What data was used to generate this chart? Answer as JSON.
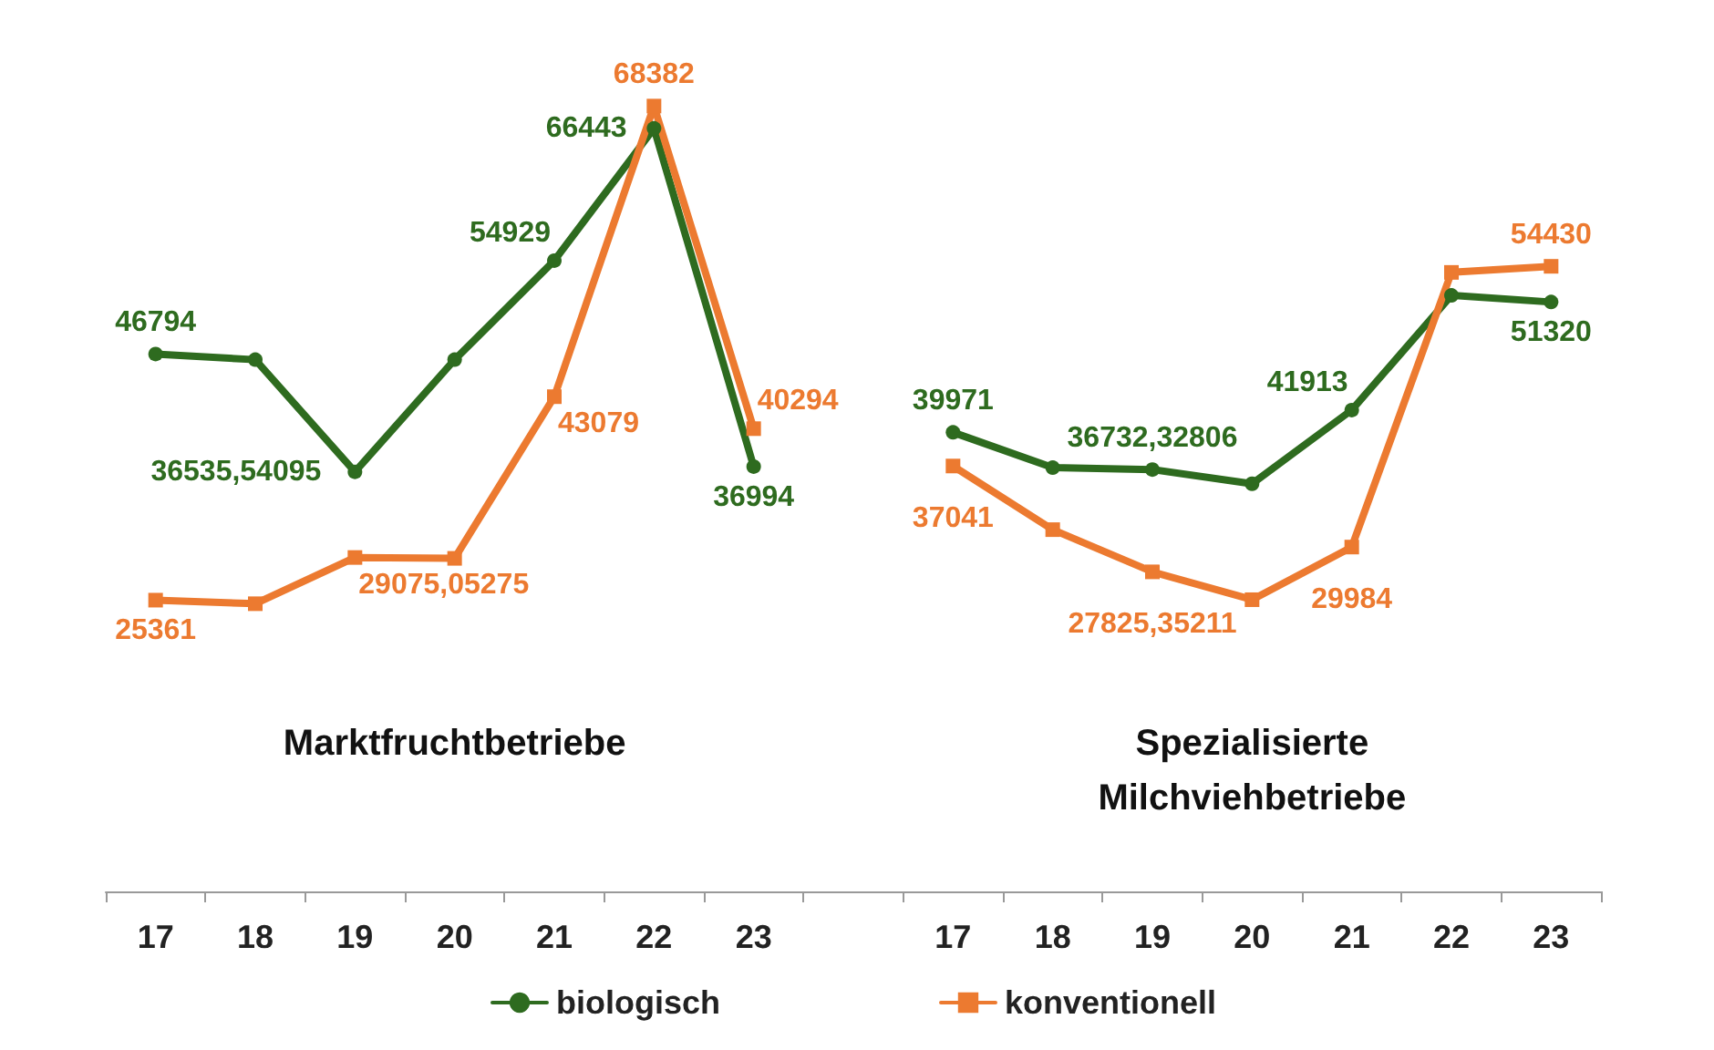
{
  "chart_data": {
    "type": "line",
    "categories": [
      "17",
      "18",
      "19",
      "20",
      "21",
      "22",
      "23",
      null,
      "17",
      "18",
      "19",
      "20",
      "21",
      "22",
      "23"
    ],
    "series": [
      {
        "name": "biologisch",
        "color": "#2e6b1f",
        "marker": "circle",
        "values": [
          46794,
          46300,
          36535.54095,
          46300,
          54929,
          66443,
          36994,
          null,
          39971,
          36900,
          36732.32806,
          35500,
          41913,
          51900,
          51320
        ],
        "value_labels": [
          "46794",
          null,
          "36535,54095",
          null,
          "54929",
          "66443",
          "36994",
          null,
          "39971",
          null,
          "36732,32806",
          null,
          "41913",
          null,
          "51320"
        ]
      },
      {
        "name": "konventionell",
        "color": "#ec7a30",
        "marker": "square",
        "values": [
          25361,
          25050,
          29075.05275,
          29000,
          43079,
          68382,
          40294,
          null,
          37041,
          31500,
          27825.35211,
          25400,
          29984,
          53900,
          54430
        ],
        "value_labels": [
          "25361",
          null,
          "29075,05275",
          null,
          "43079",
          "68382",
          "40294",
          null,
          "37041",
          null,
          "27825,35211",
          null,
          "29984",
          null,
          "54430"
        ]
      }
    ],
    "annotations": [
      "Marktfruchtbetriebe",
      "Spezialisierte\nMilchviehbetriebe"
    ],
    "legend": "bottom",
    "grid": false,
    "line_style": "solid"
  }
}
